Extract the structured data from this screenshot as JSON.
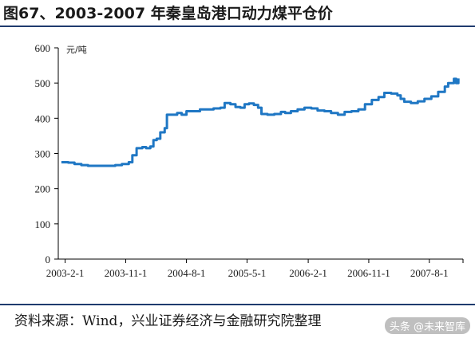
{
  "figure_title": "图67、2003-2007 年秦皇岛港口动力煤平仓价",
  "source": "资料来源：Wind，兴业证券经济与金融研究院整理",
  "watermark": "头条 @未来智库",
  "colors": {
    "line": "#1f77c4",
    "rule": "#1f3b6e",
    "axis": "#000000"
  },
  "chart_data": {
    "type": "line",
    "title": "",
    "unit_label": "元/吨",
    "ylabel": "",
    "xlabel": "",
    "ylim": [
      0,
      600
    ],
    "y_ticks": [
      0,
      100,
      200,
      300,
      400,
      500,
      600
    ],
    "x_range": [
      "2003-01-01",
      "2007-12-31"
    ],
    "x_ticks": [
      "2003-2-1",
      "2003-11-1",
      "2004-8-1",
      "2005-5-1",
      "2006-2-1",
      "2006-11-1",
      "2007-8-1"
    ],
    "grid": false,
    "series": [
      {
        "values": [
          [
            "2003-01-15",
            275
          ],
          [
            "2003-02-15",
            274
          ],
          [
            "2003-03-15",
            270
          ],
          [
            "2003-04-15",
            267
          ],
          [
            "2003-05-15",
            265
          ],
          [
            "2003-06-15",
            265
          ],
          [
            "2003-07-15",
            265
          ],
          [
            "2003-08-15",
            265
          ],
          [
            "2003-09-15",
            267
          ],
          [
            "2003-10-15",
            270
          ],
          [
            "2003-11-15",
            275
          ],
          [
            "2003-12-01",
            295
          ],
          [
            "2003-12-20",
            315
          ],
          [
            "2004-01-15",
            318
          ],
          [
            "2004-02-01",
            315
          ],
          [
            "2004-02-20",
            320
          ],
          [
            "2004-03-05",
            338
          ],
          [
            "2004-03-20",
            342
          ],
          [
            "2004-04-05",
            360
          ],
          [
            "2004-04-25",
            372
          ],
          [
            "2004-05-05",
            410
          ],
          [
            "2004-06-01",
            410
          ],
          [
            "2004-06-20",
            415
          ],
          [
            "2004-07-10",
            410
          ],
          [
            "2004-08-01",
            420
          ],
          [
            "2004-09-01",
            420
          ],
          [
            "2004-10-01",
            425
          ],
          [
            "2004-11-01",
            425
          ],
          [
            "2004-12-01",
            428
          ],
          [
            "2005-01-01",
            430
          ],
          [
            "2005-01-20",
            443
          ],
          [
            "2005-02-15",
            440
          ],
          [
            "2005-03-10",
            432
          ],
          [
            "2005-04-01",
            430
          ],
          [
            "2005-04-20",
            440
          ],
          [
            "2005-05-10",
            442
          ],
          [
            "2005-06-01",
            438
          ],
          [
            "2005-06-20",
            430
          ],
          [
            "2005-07-05",
            412
          ],
          [
            "2005-08-01",
            410
          ],
          [
            "2005-09-01",
            412
          ],
          [
            "2005-10-01",
            418
          ],
          [
            "2005-10-20",
            415
          ],
          [
            "2005-11-15",
            420
          ],
          [
            "2005-12-15",
            425
          ],
          [
            "2006-01-15",
            430
          ],
          [
            "2006-02-15",
            428
          ],
          [
            "2006-03-15",
            422
          ],
          [
            "2006-04-15",
            420
          ],
          [
            "2006-05-15",
            415
          ],
          [
            "2006-06-15",
            410
          ],
          [
            "2006-07-15",
            418
          ],
          [
            "2006-08-15",
            420
          ],
          [
            "2006-09-15",
            425
          ],
          [
            "2006-10-15",
            440
          ],
          [
            "2006-11-15",
            452
          ],
          [
            "2006-12-15",
            460
          ],
          [
            "2007-01-10",
            472
          ],
          [
            "2007-02-10",
            470
          ],
          [
            "2007-03-10",
            465
          ],
          [
            "2007-03-25",
            455
          ],
          [
            "2007-04-10",
            447
          ],
          [
            "2007-05-10",
            443
          ],
          [
            "2007-06-10",
            448
          ],
          [
            "2007-07-10",
            455
          ],
          [
            "2007-08-10",
            462
          ],
          [
            "2007-09-10",
            475
          ],
          [
            "2007-10-10",
            490
          ],
          [
            "2007-10-25",
            500
          ],
          [
            "2007-11-10",
            500
          ],
          [
            "2007-11-20",
            512
          ],
          [
            "2007-11-30",
            500
          ],
          [
            "2007-12-10",
            513
          ]
        ]
      }
    ]
  }
}
